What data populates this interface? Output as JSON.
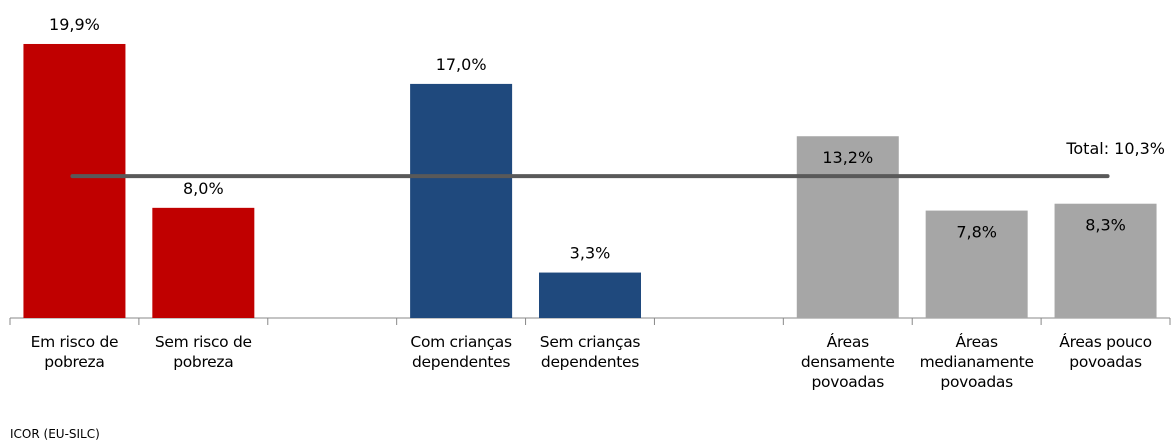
{
  "chart_data": {
    "type": "bar",
    "categories": [
      "Em risco de pobreza",
      "Sem risco de pobreza",
      null,
      "Com crianças dependentes",
      "Sem crianças dependentes",
      null,
      "Áreas densamente povoadas",
      "Áreas medianamente povoadas",
      "Áreas pouco povoadas"
    ],
    "values": [
      19.9,
      8.0,
      null,
      17.0,
      3.3,
      null,
      13.2,
      7.8,
      8.3
    ],
    "value_labels": [
      "19,9%",
      "8,0%",
      null,
      "17,0%",
      "3,3%",
      null,
      "13,2%",
      "7,8%",
      "8,3%"
    ],
    "value_label_positions": [
      "above",
      "above",
      null,
      "above",
      "above",
      null,
      "inside",
      "inside",
      "inside"
    ],
    "colors": [
      "#c00000",
      "#c00000",
      null,
      "#1f497d",
      "#1f497d",
      null,
      "#a6a6a6",
      "#a6a6a6",
      "#a6a6a6"
    ],
    "ylim": [
      0,
      20
    ],
    "reference_line": {
      "value": 10.3,
      "label": "Total: 10,3%",
      "color": "#595959"
    },
    "source": "ICOR (EU-SILC)"
  }
}
